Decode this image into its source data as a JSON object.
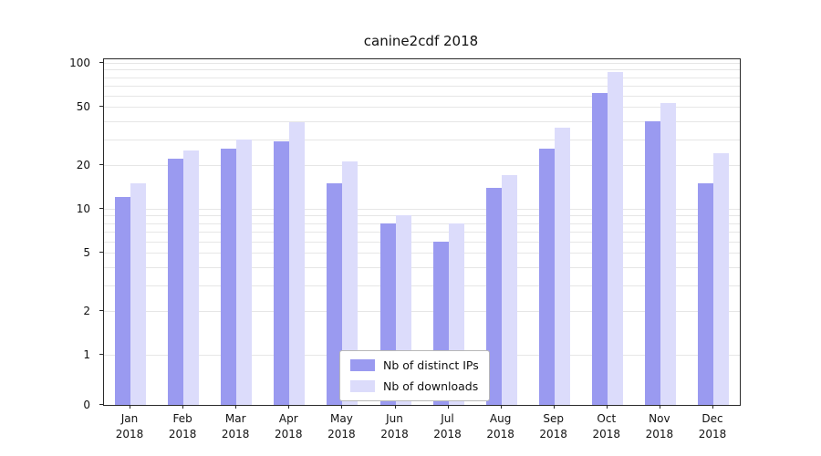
{
  "chart_data": {
    "type": "bar",
    "title": "canine2cdf 2018",
    "scale": "symlog",
    "grid": true,
    "ylim": [
      0,
      100
    ],
    "yticks": [
      100,
      50,
      20,
      10,
      5,
      2,
      1,
      0
    ],
    "minor_gridlines": [
      1,
      2,
      3,
      4,
      5,
      6,
      7,
      8,
      9,
      10,
      20,
      30,
      40,
      50,
      60,
      70,
      80,
      90,
      100
    ],
    "months": [
      "Jan",
      "Feb",
      "Mar",
      "Apr",
      "May",
      "Jun",
      "Jul",
      "Aug",
      "Sep",
      "Oct",
      "Nov",
      "Dec"
    ],
    "year": "2018",
    "legend_position": "lower center",
    "series": [
      {
        "name": "Nb of distinct IPs",
        "color": "#9a9af0",
        "values": [
          12,
          22,
          26,
          29,
          15,
          8,
          6,
          14,
          26,
          62,
          40,
          15
        ]
      },
      {
        "name": "Nb of downloads",
        "color": "#dcdcfb",
        "values": [
          15,
          25,
          30,
          39,
          21,
          9,
          8,
          17,
          36,
          87,
          53,
          24
        ]
      }
    ]
  }
}
